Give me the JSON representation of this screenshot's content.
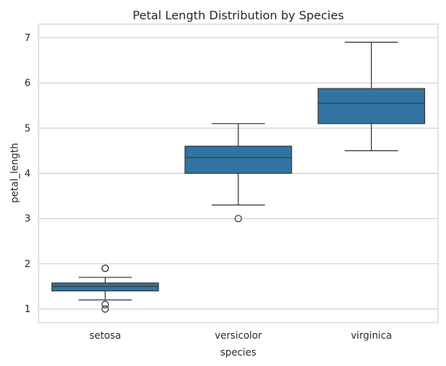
{
  "chart_data": {
    "type": "box",
    "title": "Petal Length Distribution by Species",
    "xlabel": "species",
    "ylabel": "petal_length",
    "ylim": [
      0.7,
      7.3
    ],
    "yticks": [
      "1",
      "2",
      "3",
      "4",
      "5",
      "6",
      "7"
    ],
    "grid": true,
    "color": "#3274a1",
    "categories": [
      "setosa",
      "versicolor",
      "virginica"
    ],
    "boxes": [
      {
        "category": "setosa",
        "whisker_low": 1.2,
        "q1": 1.4,
        "median": 1.5,
        "q3": 1.575,
        "whisker_high": 1.7,
        "outliers": [
          1.0,
          1.1,
          1.9,
          1.9
        ]
      },
      {
        "category": "versicolor",
        "whisker_low": 3.3,
        "q1": 4.0,
        "median": 4.35,
        "q3": 4.6,
        "whisker_high": 5.1,
        "outliers": [
          3.0
        ]
      },
      {
        "category": "virginica",
        "whisker_low": 4.5,
        "q1": 5.1,
        "median": 5.55,
        "q3": 5.875,
        "whisker_high": 6.9,
        "outliers": []
      }
    ]
  }
}
